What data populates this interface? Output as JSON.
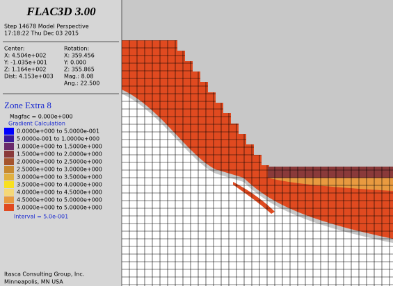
{
  "header": {
    "title": "FLAC3D 3.00",
    "step": "Step 14678  Model Perspective",
    "time": "17:18:22 Thu Dec 03 2015"
  },
  "view": {
    "center_label": "Center:",
    "rotation_label": "Rotation:",
    "center": [
      "X: 4.504e+002",
      "Y: -1.035e+001",
      "Z: 1.164e+002",
      "Dist: 4.153e+003"
    ],
    "rotation": [
      "X: 359.456",
      "Y:   0.000",
      "Z: 355.865",
      "Mag.:    8.08",
      "Ang.:  22.500"
    ]
  },
  "legend": {
    "title": "Zone Extra 8",
    "magfac": "Magfac =  0.000e+000",
    "subtitle": "Gradient Calculation",
    "items": [
      {
        "label": "0.0000e+000 to  5.0000e-001",
        "color": "#0000ff"
      },
      {
        "label": "5.0000e-001 to  1.0000e+000",
        "color": "#3a1a9a"
      },
      {
        "label": "1.0000e+000 to  1.5000e+000",
        "color": "#6a2a6a"
      },
      {
        "label": "1.5000e+000 to  2.0000e+000",
        "color": "#8a3a3a"
      },
      {
        "label": "2.0000e+000 to  2.5000e+000",
        "color": "#a5552e"
      },
      {
        "label": "2.5000e+000 to  3.0000e+000",
        "color": "#c88a30"
      },
      {
        "label": "3.0000e+000 to  3.5000e+000",
        "color": "#e0b040"
      },
      {
        "label": "3.5000e+000 to  4.0000e+000",
        "color": "#f8e020"
      },
      {
        "label": "4.0000e+000 to  4.5000e+000",
        "color": "#f5d878"
      },
      {
        "label": "4.5000e+000 to  5.0000e+000",
        "color": "#e89a40"
      },
      {
        "label": "5.0000e+000 to  5.0000e+000",
        "color": "#e04a20"
      }
    ],
    "interval": "Interval =  5.0e-001"
  },
  "footer": {
    "company": "Itasca Consulting Group, Inc.",
    "location": "Minneapolis, MN  USA"
  }
}
